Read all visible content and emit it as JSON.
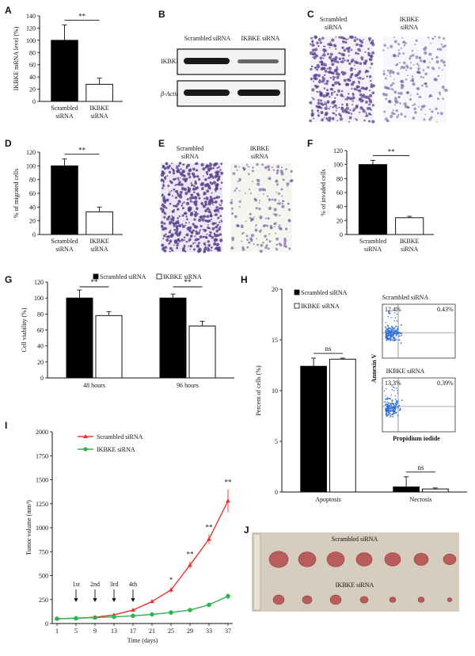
{
  "colors": {
    "scrambled": "#000000",
    "ikbke": "#ffffff",
    "scrambled_line": "#e8342f",
    "ikbke_line": "#2fb24f",
    "stain": "#5a3f8c"
  },
  "panels": {
    "A": "A",
    "B": "B",
    "C": "C",
    "D": "D",
    "E": "E",
    "F": "F",
    "G": "G",
    "H": "H",
    "I": "I",
    "J": "J"
  },
  "blot": {
    "col1": "Scrambled siRNA",
    "col2": "IKBKE siRNA",
    "row1": "IKBKE",
    "row2": "β-Actin"
  },
  "micrographs_c": {
    "label1": "Scrambled siRNA",
    "label2": "IKBKE siRNA"
  },
  "micrographs_e": {
    "label1": "Scrambled siRNA",
    "label2": "IKBKE siRNA"
  },
  "flow": {
    "top_title": "Scrambled siRNA",
    "top_q1": "12.4%",
    "top_q2": "0.43%",
    "bottom_title": "IKBKE siRNA",
    "bottom_q1": "13.3%",
    "bottom_q2": "0.39%",
    "ylabel": "Annexin V",
    "xlabel": "Propidium iodide"
  },
  "photo": {
    "top_label": "Scrambled siRNA",
    "bottom_label": "IKBKE siRNA"
  },
  "chart_data": [
    {
      "panel": "A",
      "type": "bar",
      "categories": [
        "Scrambled siRNA",
        "IKBKE siRNA"
      ],
      "values": [
        100,
        28
      ],
      "errors": [
        25,
        10
      ],
      "ylabel": "IKBKE mRNA level (%)",
      "ylim": [
        0,
        140
      ],
      "yticks": [
        0,
        20,
        40,
        60,
        80,
        100,
        120,
        140
      ],
      "significance": "**"
    },
    {
      "panel": "D",
      "type": "bar",
      "categories": [
        "Scrambled siRNA",
        "IKBKE siRNA"
      ],
      "values": [
        100,
        33
      ],
      "errors": [
        10,
        7
      ],
      "ylabel": "% of migrated cells",
      "ylim": [
        0,
        120
      ],
      "yticks": [
        0,
        20,
        40,
        60,
        80,
        100,
        120
      ],
      "significance": "**"
    },
    {
      "panel": "F",
      "type": "bar",
      "categories": [
        "Scrambled siRNA",
        "IKBKE siRNA"
      ],
      "values": [
        100,
        24
      ],
      "errors": [
        6,
        2
      ],
      "ylabel": "% of invaded cells",
      "ylim": [
        0,
        120
      ],
      "yticks": [
        0,
        20,
        40,
        60,
        80,
        100,
        120
      ],
      "significance": "**"
    },
    {
      "panel": "G",
      "type": "bar",
      "categories": [
        "48 hours",
        "96 hours"
      ],
      "series": [
        {
          "name": "Scrambled siRNA",
          "values": [
            100,
            100
          ],
          "errors": [
            10,
            5
          ]
        },
        {
          "name": "IKBKE siRNA",
          "values": [
            78,
            65
          ],
          "errors": [
            5,
            6
          ]
        }
      ],
      "ylabel": "Cell viability (%)",
      "ylim": [
        0,
        120
      ],
      "yticks": [
        0,
        20,
        40,
        60,
        80,
        100,
        120
      ],
      "significance": [
        "**",
        "**"
      ]
    },
    {
      "panel": "H",
      "type": "bar",
      "categories": [
        "Apoptosis",
        "Necrosis"
      ],
      "series": [
        {
          "name": "Scrambled siRNA",
          "values": [
            12.4,
            0.5
          ],
          "errors": [
            0.8,
            1.0
          ]
        },
        {
          "name": "IKBKE siRNA",
          "values": [
            13.1,
            0.3
          ],
          "errors": [
            0.1,
            0.1
          ]
        }
      ],
      "ylabel": "Percent of cells (%)",
      "ylim": [
        0,
        20
      ],
      "yticks": [
        0,
        5,
        10,
        15,
        20
      ],
      "significance": [
        "ns",
        "ns"
      ]
    },
    {
      "panel": "I",
      "type": "line",
      "x": [
        1,
        5,
        9,
        13,
        17,
        21,
        25,
        29,
        33,
        37
      ],
      "series": [
        {
          "name": "Scrambled siRNA",
          "values": [
            50,
            55,
            65,
            90,
            140,
            230,
            350,
            610,
            880,
            1280
          ],
          "errors": [
            5,
            5,
            8,
            10,
            15,
            20,
            30,
            40,
            50,
            120
          ]
        },
        {
          "name": "IKBKE siRNA",
          "values": [
            50,
            55,
            62,
            70,
            80,
            95,
            115,
            140,
            195,
            285
          ],
          "errors": [
            5,
            5,
            5,
            6,
            7,
            8,
            10,
            12,
            20,
            30
          ]
        }
      ],
      "xlabel": "Time (days)",
      "ylabel": "Tumor volume (mm³)",
      "xticks": [
        1,
        5,
        9,
        13,
        17,
        21,
        25,
        29,
        33,
        37
      ],
      "ylim": [
        0,
        2000
      ],
      "yticks": [
        0,
        250,
        500,
        750,
        1000,
        1250,
        1500,
        1750,
        2000
      ],
      "injections": [
        {
          "label": "1st",
          "day": 5
        },
        {
          "label": "2nd",
          "day": 9
        },
        {
          "label": "3rd",
          "day": 13
        },
        {
          "label": "4th",
          "day": 17
        }
      ],
      "significance": [
        {
          "day": 25,
          "mark": "*"
        },
        {
          "day": 29,
          "mark": "**"
        },
        {
          "day": 33,
          "mark": "**"
        },
        {
          "day": 37,
          "mark": "**"
        }
      ]
    }
  ]
}
